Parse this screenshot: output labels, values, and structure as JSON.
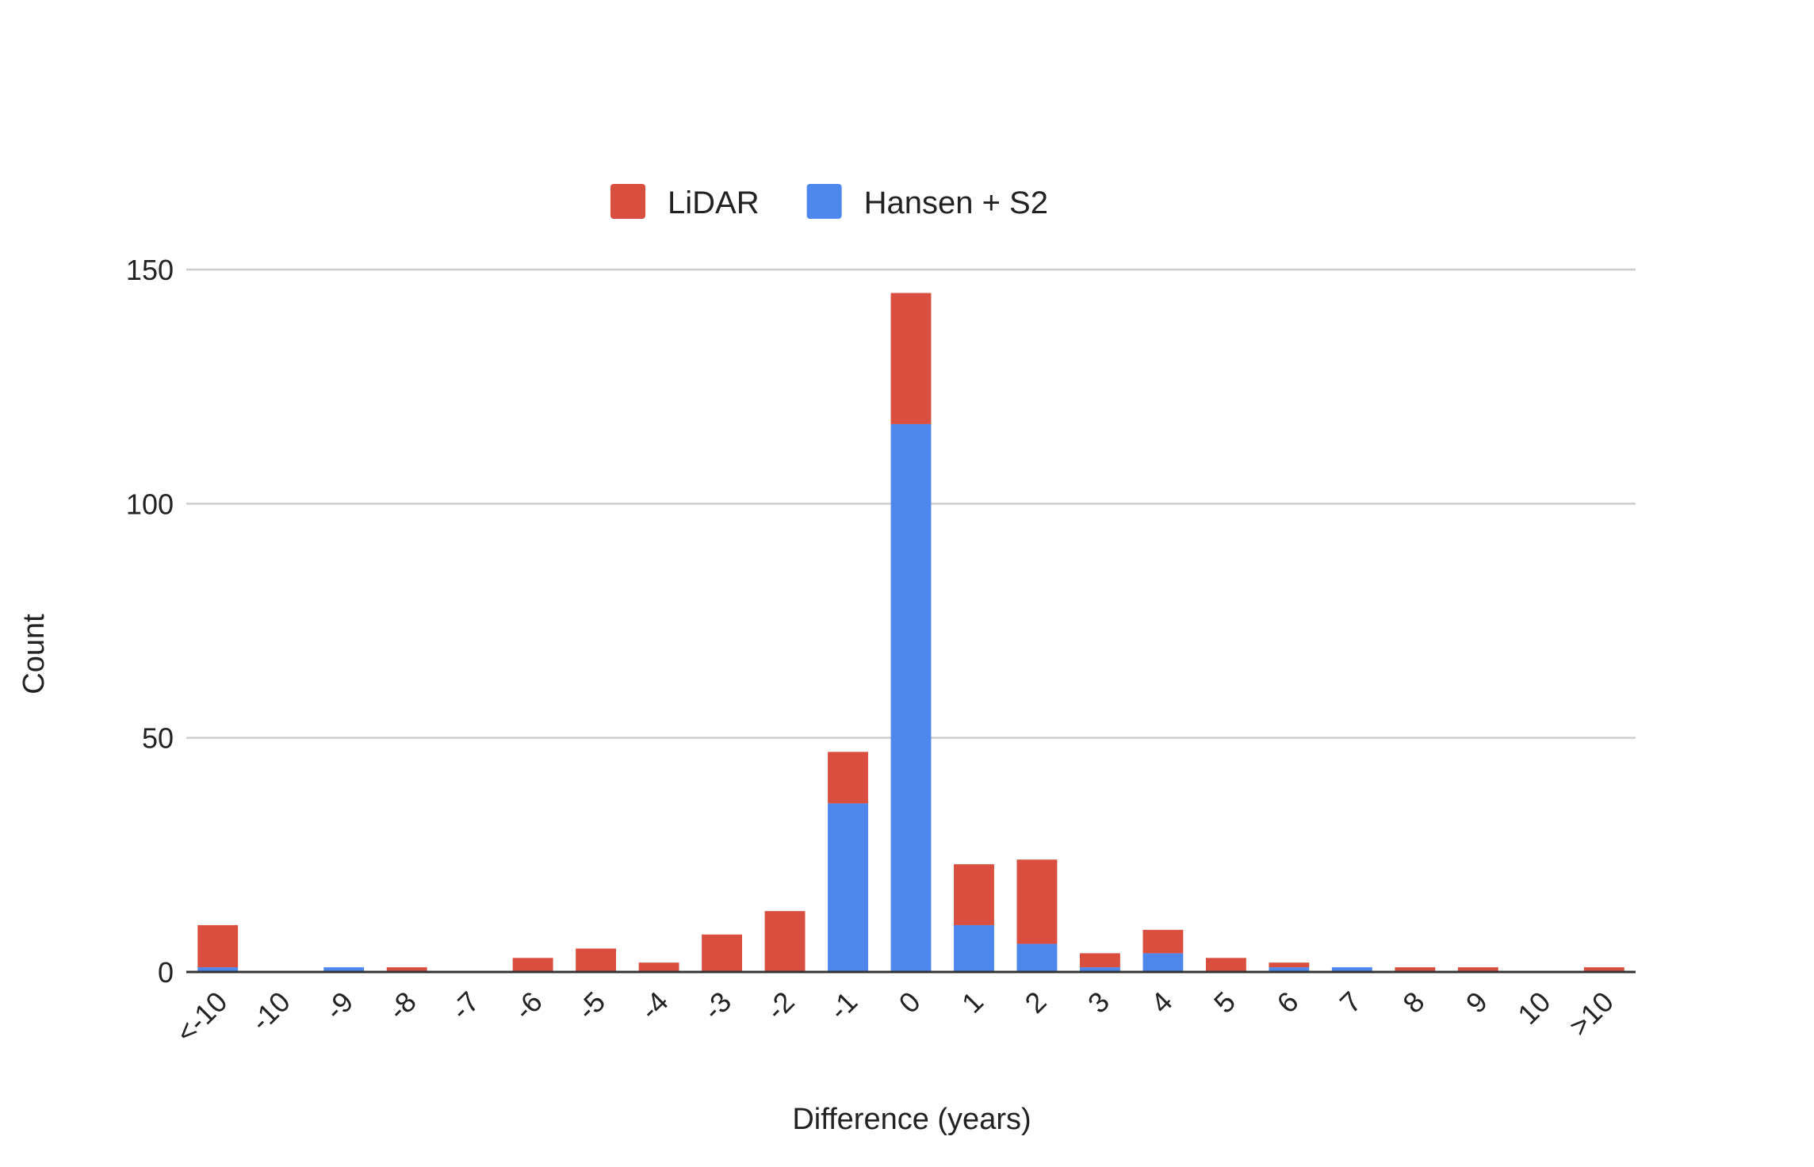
{
  "chart_data": {
    "type": "bar",
    "stacked": true,
    "title": "",
    "xlabel": "Difference (years)",
    "ylabel": "Count",
    "ylim": [
      0,
      150
    ],
    "yticks": [
      0,
      50,
      100,
      150
    ],
    "grid": true,
    "legend_position": "top",
    "categories": [
      "<-10",
      "-10",
      "-9",
      "-8",
      "-7",
      "-6",
      "-5",
      "-4",
      "-3",
      "-2",
      "-1",
      "0",
      "1",
      "2",
      "3",
      "4",
      "5",
      "6",
      "7",
      "8",
      "9",
      "10",
      ">10"
    ],
    "series": [
      {
        "name": "Hansen + S2",
        "color": "#4e87ec",
        "values": [
          1,
          0,
          1,
          0,
          0,
          0,
          0,
          0,
          0,
          0,
          36,
          117,
          10,
          6,
          1,
          4,
          0,
          1,
          1,
          0,
          0,
          0,
          0
        ]
      },
      {
        "name": "LiDAR",
        "color": "#d94e3e",
        "values": [
          9,
          0,
          0,
          1,
          0,
          3,
          5,
          2,
          8,
          13,
          11,
          28,
          13,
          18,
          3,
          5,
          3,
          1,
          0,
          1,
          1,
          0,
          1
        ]
      }
    ],
    "legend_order": [
      "LiDAR",
      "Hansen + S2"
    ],
    "colors": {
      "grid": "#cccccc",
      "axis": "#333333",
      "text": "#222222"
    }
  }
}
